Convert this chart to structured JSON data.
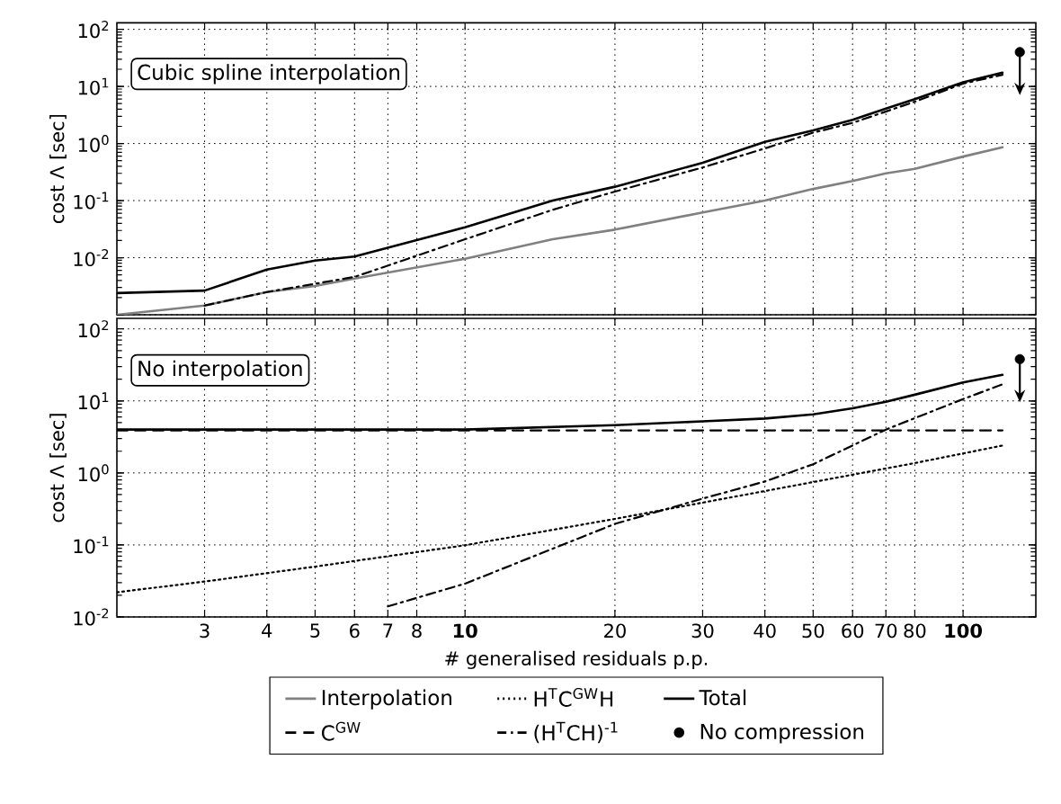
{
  "chart_data": [
    {
      "type": "line",
      "ylabel": "cost Λ  [sec]",
      "annotations": [
        "Cubic spline interpolation"
      ],
      "log": "xy",
      "grid": true,
      "tick_labels": "y",
      "xlim": [
        2,
        140
      ],
      "ylim": [
        0.001,
        130
      ],
      "xticks": [
        3,
        4,
        5,
        6,
        7,
        8,
        10,
        20,
        30,
        40,
        50,
        60,
        70,
        80,
        100
      ],
      "yticks": [
        {
          "value": 0.001,
          "label": null
        },
        {
          "value": 0.01,
          "label": "10$^{-2}$"
        },
        {
          "value": 0.1,
          "label": "10$^{-1}$"
        },
        {
          "value": 1,
          "label": "10$^{0}$"
        },
        {
          "value": 10,
          "label": "10$^{1}$"
        },
        {
          "value": 100,
          "label": "10$^{2}$"
        }
      ],
      "series": [
        {
          "name": "Interpolation",
          "color": "#808080",
          "line_style": "solid",
          "x": [
            2,
            3,
            4,
            5,
            6,
            10,
            15,
            20,
            30,
            40,
            50,
            60,
            70,
            80,
            100,
            120
          ],
          "values": [
            0.001,
            0.00145,
            0.0025,
            0.0032,
            0.0043,
            0.0096,
            0.021,
            0.031,
            0.062,
            0.1,
            0.16,
            0.22,
            0.3,
            0.36,
            0.59,
            0.86
          ]
        },
        {
          "name": "(H$^{T}$CH)$^{-1}$",
          "color": "#000000",
          "line_style": "dashdot",
          "x": [
            3,
            4,
            6,
            10,
            15,
            20,
            30,
            40,
            50,
            60,
            80,
            100,
            120
          ],
          "values": [
            0.00145,
            0.0025,
            0.0046,
            0.021,
            0.069,
            0.144,
            0.38,
            0.82,
            1.55,
            2.3,
            5.4,
            11.2,
            16
          ]
        },
        {
          "name": "Total",
          "color": "#000000",
          "line_style": "solid",
          "x": [
            2,
            3,
            4,
            5,
            6,
            10,
            15,
            20,
            30,
            40,
            50,
            60,
            70,
            80,
            100,
            120
          ],
          "values": [
            0.0024,
            0.00265,
            0.0062,
            0.0089,
            0.0105,
            0.034,
            0.1,
            0.175,
            0.46,
            1.07,
            1.7,
            2.6,
            4.1,
            6.0,
            11.8,
            17.4
          ]
        },
        {
          "name": "No compression",
          "type": "scatter",
          "marker": "circle",
          "color": "#000000",
          "x": [
            130
          ],
          "values": [
            40
          ]
        }
      ]
    },
    {
      "type": "line",
      "ylabel": "cost Λ  [sec]",
      "xlabel": "# generalised residuals p.p.",
      "annotations": [
        "No interpolation"
      ],
      "log": "xy",
      "grid": true,
      "legend": "bottom",
      "xlim": [
        2,
        140
      ],
      "ylim": [
        0.01,
        140
      ],
      "xticks": [
        3,
        4,
        5,
        6,
        7,
        8,
        10,
        20,
        30,
        40,
        50,
        60,
        70,
        80,
        100
      ],
      "yticks": [
        {
          "value": 0.01,
          "label": "10$^{-2}$"
        },
        {
          "value": 0.1,
          "label": "10$^{-1}$"
        },
        {
          "value": 1,
          "label": "10$^{0}$"
        },
        {
          "value": 10,
          "label": "10$^{1}$"
        },
        {
          "value": 100,
          "label": "10$^{2}$"
        }
      ],
      "series": [
        {
          "name": "C$^{GW}$",
          "color": "#000000",
          "line_style": "dashed",
          "x": [
            2,
            120
          ],
          "values": [
            3.9,
            3.9
          ]
        },
        {
          "name": "H$^{T}$C$^{GW}$H",
          "color": "#000000",
          "line_style": "dotted",
          "x": [
            2,
            3,
            5,
            10,
            20,
            40,
            80,
            120
          ],
          "values": [
            0.022,
            0.031,
            0.05,
            0.099,
            0.23,
            0.56,
            1.37,
            2.4
          ]
        },
        {
          "name": "(H$^{T}$CH)$^{-1}$",
          "color": "#000000",
          "line_style": "dashdot",
          "x": [
            7,
            10,
            20,
            30,
            40,
            50,
            70,
            100,
            120
          ],
          "values": [
            0.014,
            0.029,
            0.196,
            0.44,
            0.76,
            1.32,
            4.0,
            10.6,
            17
          ]
        },
        {
          "name": "Total",
          "color": "#000000",
          "line_style": "solid",
          "x": [
            2,
            3,
            4,
            5,
            6,
            10,
            20,
            30,
            40,
            50,
            60,
            70,
            80,
            100,
            120
          ],
          "values": [
            4.0,
            4.0,
            4.0,
            4.0,
            4.0,
            4.0,
            4.6,
            5.2,
            5.7,
            6.5,
            7.9,
            9.7,
            12.2,
            18,
            23
          ]
        },
        {
          "name": "No compression",
          "type": "scatter",
          "marker": "circle",
          "color": "#000000",
          "x": [
            130
          ],
          "values": [
            38
          ]
        }
      ]
    }
  ]
}
